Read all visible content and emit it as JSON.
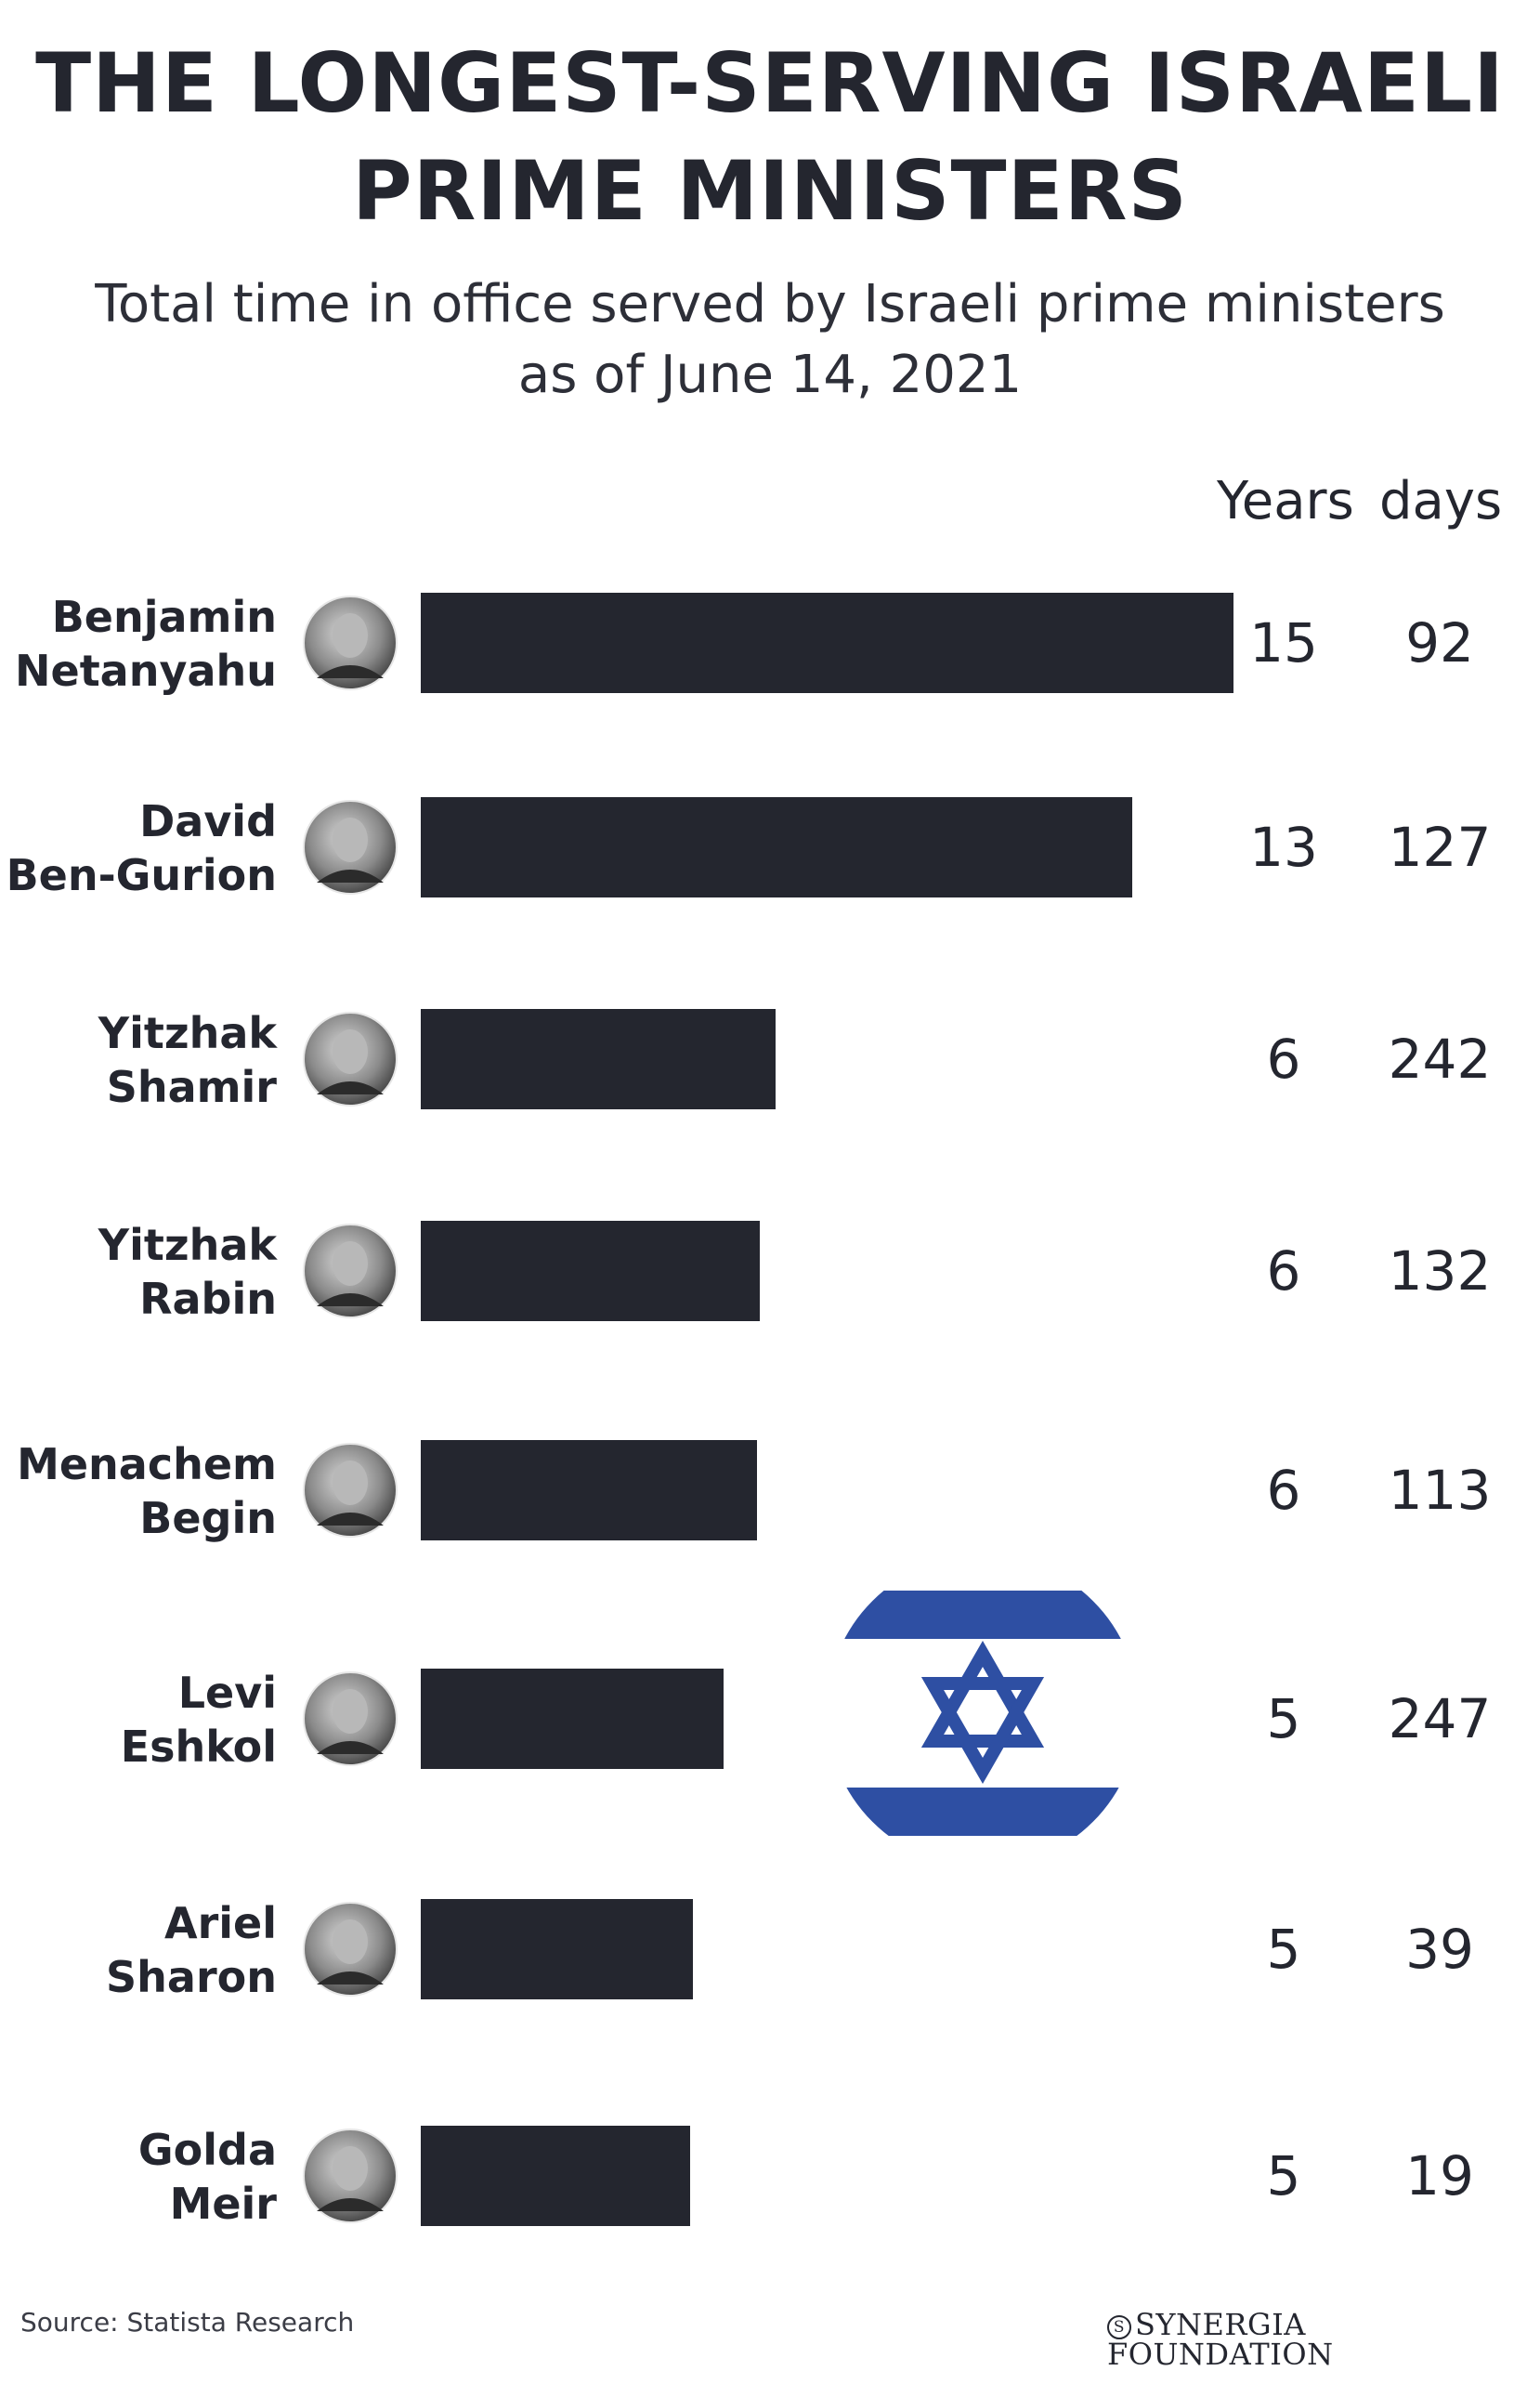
{
  "title_lines": [
    "THE LONGEST-SERVING ISRAELI",
    "PRIME MINISTERS"
  ],
  "subtitle_lines": [
    "Total time in office served by Israeli prime ministers",
    "as of June 14, 2021"
  ],
  "column_headers": {
    "years": "Years",
    "days": "days"
  },
  "source": "Source: Statista Research",
  "brand": {
    "mark": "S",
    "name": "SYNERGIA FOUNDATION"
  },
  "colors": {
    "bar": "#24262f",
    "text": "#24262f",
    "flag_blue": "#2e4fa3",
    "flag_white": "#ffffff"
  },
  "icons": {
    "portrait": "portrait-icon",
    "flag": "israel-flag-icon"
  },
  "chart_data": {
    "type": "bar",
    "orientation": "horizontal",
    "title": "THE LONGEST-SERVING ISRAELI PRIME MINISTERS",
    "subtitle": "Total time in office served by Israeli prime ministers as of June 14, 2021",
    "categories": [
      [
        "Benjamin",
        "Netanyahu"
      ],
      [
        "David",
        "Ben-Gurion"
      ],
      [
        "Yitzhak",
        "Shamir"
      ],
      [
        "Yitzhak",
        "Rabin"
      ],
      [
        "Menachem",
        "Begin"
      ],
      [
        "Levi",
        "Eshkol"
      ],
      [
        "Ariel",
        "Sharon"
      ],
      [
        "Golda",
        "Meir"
      ]
    ],
    "years": [
      15,
      13,
      6,
      6,
      6,
      5,
      5,
      5
    ],
    "days": [
      92,
      127,
      242,
      132,
      113,
      247,
      39,
      19
    ],
    "xlabel": "",
    "ylabel": "",
    "grid": false,
    "legend": "none"
  }
}
